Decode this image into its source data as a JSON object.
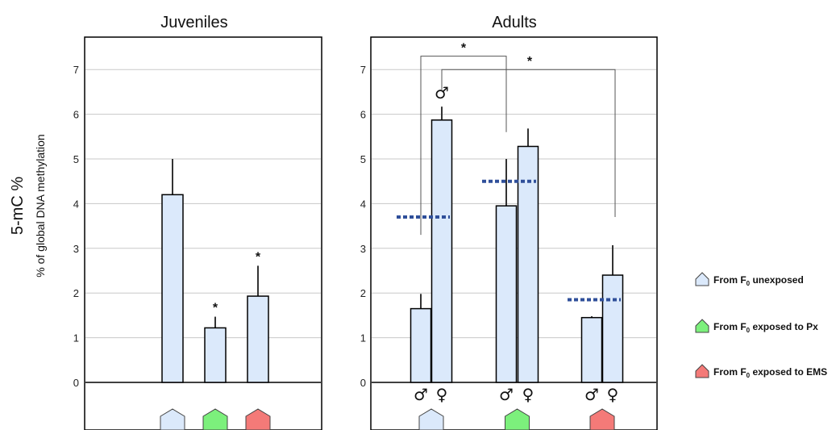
{
  "chart_data": [
    {
      "type": "bar",
      "title": "Juveniles",
      "ylabel": "5-mC %",
      "ylabel_sub": "% of global DNA methylation",
      "ylim": [
        0,
        7.7
      ],
      "yticks": [
        "0",
        "1",
        "2",
        "3",
        "4",
        "5",
        "6",
        "7"
      ],
      "grid": true,
      "groups": [
        {
          "marker": "from-f0-unexposed",
          "color": "#dbe9fb",
          "bars": [
            {
              "value": 4.2,
              "error": 0.8,
              "star": ""
            }
          ]
        },
        {
          "marker": "from-f0-exposed-px",
          "color": "#7cf07c",
          "bars": [
            {
              "value": 1.22,
              "error": 0.25,
              "star": "*"
            }
          ]
        },
        {
          "marker": "from-f0-exposed-ems",
          "color": "#f47a78",
          "bars": [
            {
              "value": 1.93,
              "error": 0.68,
              "star": "*"
            }
          ]
        }
      ]
    },
    {
      "type": "bar",
      "title": "Adults",
      "ylim": [
        0,
        7.7
      ],
      "yticks": [
        "0",
        "1",
        "2",
        "3",
        "4",
        "5",
        "6",
        "7"
      ],
      "grid": true,
      "male_symbol": "♂",
      "female_symbol": "♀",
      "groups": [
        {
          "marker": "from-f0-unexposed",
          "color": "#dbe9fb",
          "mean": 3.7,
          "bars": [
            {
              "sex": "♂",
              "value": 1.65,
              "error": 0.33
            },
            {
              "sex": "♀",
              "value": 5.87,
              "error": 0.3
            }
          ]
        },
        {
          "marker": "from-f0-exposed-px",
          "color": "#7cf07c",
          "mean": 4.5,
          "bars": [
            {
              "sex": "♂",
              "value": 3.95,
              "error": 1.05
            },
            {
              "sex": "♀",
              "value": 5.28,
              "error": 0.4
            }
          ]
        },
        {
          "marker": "from-f0-exposed-ems",
          "color": "#f47a78",
          "mean": 1.85,
          "bars": [
            {
              "sex": "♂",
              "value": 1.45,
              "error": 0.03
            },
            {
              "sex": "♀",
              "value": 2.4,
              "error": 0.67
            }
          ]
        }
      ],
      "annotations": [
        {
          "text": "*",
          "from": "unexposed-male",
          "to": "px-male",
          "level": 7.3
        },
        {
          "text": "*",
          "from": "unexposed-female",
          "to": "ems-female",
          "level": 7.0
        }
      ],
      "bar_label": {
        "text": "♂",
        "on": "unexposed-female"
      }
    }
  ],
  "legend": [
    {
      "label": "From F0 unexposed",
      "color": "#dbe9fb"
    },
    {
      "label": "From F0 exposed to Px",
      "color": "#7cf07c"
    },
    {
      "label": "From F0 exposed to EMS",
      "color": "#f47a78"
    }
  ]
}
